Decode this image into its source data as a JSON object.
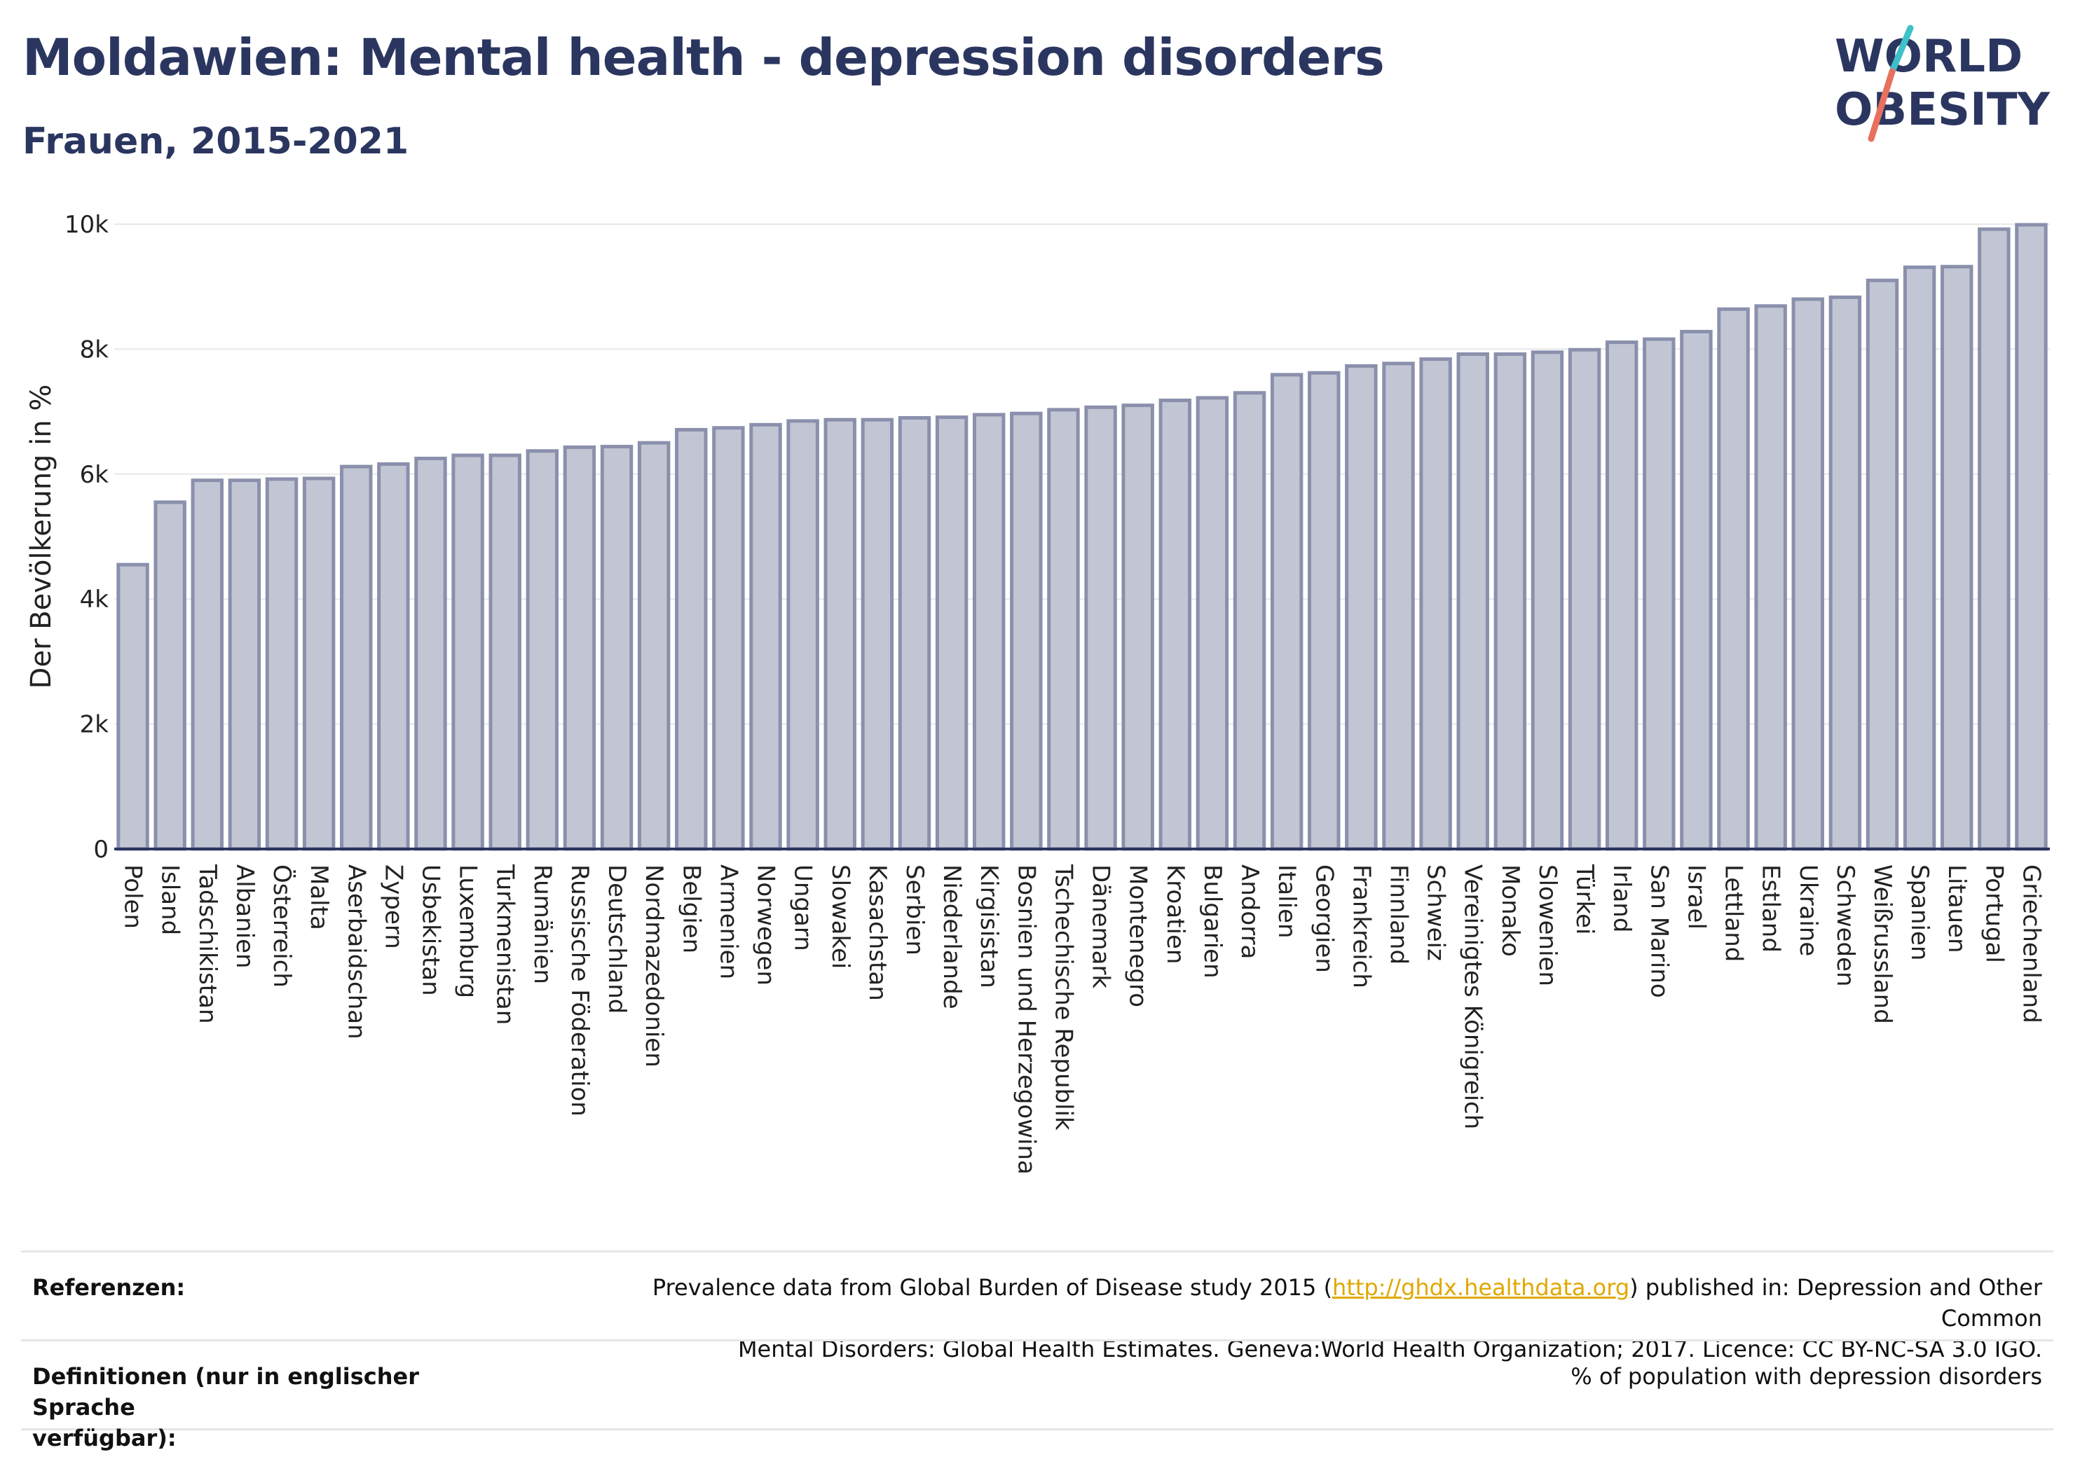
{
  "header": {
    "title": "Moldawien: Mental health - depression disorders",
    "subtitle": "Frauen, 2015-2021"
  },
  "logo": {
    "line1": "WORLD",
    "line2": "OBESITY",
    "accent_colors": [
      "#3ec1c9",
      "#e8705f"
    ]
  },
  "chart_data": {
    "type": "bar",
    "ylabel": "Der Bevölkerung in %",
    "ylim": [
      0,
      10000
    ],
    "yticks": [
      0,
      2000,
      4000,
      6000,
      8000,
      10000
    ],
    "ytick_labels": [
      "0",
      "2k",
      "4k",
      "6k",
      "8k",
      "10k"
    ],
    "grid": true,
    "bar_color": "#c2c6d4",
    "bar_edge_color": "#8a90ac",
    "axis_color": "#2b3660",
    "categories": [
      "Polen",
      "Island",
      "Tadschikistan",
      "Albanien",
      "Österreich",
      "Malta",
      "Aserbaidschan",
      "Zypern",
      "Usbekistan",
      "Luxemburg",
      "Turkmenistan",
      "Rumänien",
      "Russische Föderation",
      "Deutschland",
      "Nordmazedonien",
      "Belgien",
      "Armenien",
      "Norwegen",
      "Ungarn",
      "Slowakei",
      "Kasachstan",
      "Serbien",
      "Niederlande",
      "Kirgisistan",
      "Bosnien und Herzegowina",
      "Tschechische Republik",
      "Dänemark",
      "Montenegro",
      "Kroatien",
      "Bulgarien",
      "Andorra",
      "Italien",
      "Georgien",
      "Frankreich",
      "Finnland",
      "Schweiz",
      "Vereinigtes Königreich",
      "Monako",
      "Slowenien",
      "Türkei",
      "Irland",
      "San Marino",
      "Israel",
      "Lettland",
      "Estland",
      "Ukraine",
      "Schweden",
      "Weißrussland",
      "Spanien",
      "Litauen",
      "Portugal",
      "Griechenland"
    ],
    "values": [
      4550,
      5550,
      5900,
      5900,
      5920,
      5930,
      6120,
      6160,
      6250,
      6300,
      6300,
      6370,
      6430,
      6440,
      6500,
      6710,
      6740,
      6790,
      6850,
      6870,
      6870,
      6900,
      6910,
      6950,
      6970,
      7030,
      7070,
      7100,
      7180,
      7220,
      7300,
      7590,
      7620,
      7730,
      7770,
      7840,
      7920,
      7920,
      7950,
      7990,
      8110,
      8160,
      8280,
      8640,
      8690,
      8800,
      8830,
      9100,
      9310,
      9320,
      9920,
      9990
    ]
  },
  "references": {
    "label": "Referenzen:",
    "text_before_link": "Prevalence data from Global Burden of Disease study 2015 (",
    "link_text": "http://ghdx.healthdata.org",
    "text_after_link": ") published in: Depression and Other Common",
    "line2": "Mental Disorders: Global Health Estimates. Geneva:World Health Organization; 2017. Licence: CC BY-NC-SA 3.0 IGO."
  },
  "definitions": {
    "label_line1": "Definitionen (nur in englischer Sprache",
    "label_line2": "verfügbar):",
    "text": "% of population with depression disorders"
  }
}
